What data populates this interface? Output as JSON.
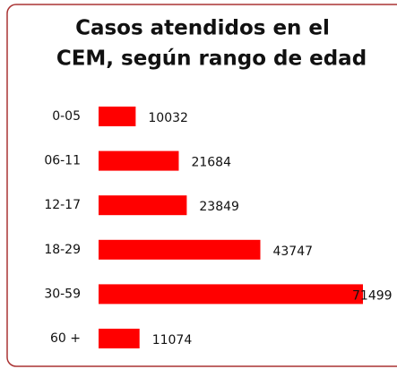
{
  "chart_data": {
    "type": "bar",
    "orientation": "horizontal",
    "title": [
      "Casos atendidos en el",
      "CEM, según rango de edad"
    ],
    "categories": [
      "0-05",
      "06-11",
      "12-17",
      "18-29",
      "30-59",
      "60 +"
    ],
    "values": [
      10032,
      21684,
      23849,
      43747,
      71499,
      11074
    ],
    "color": "#ff0000"
  }
}
